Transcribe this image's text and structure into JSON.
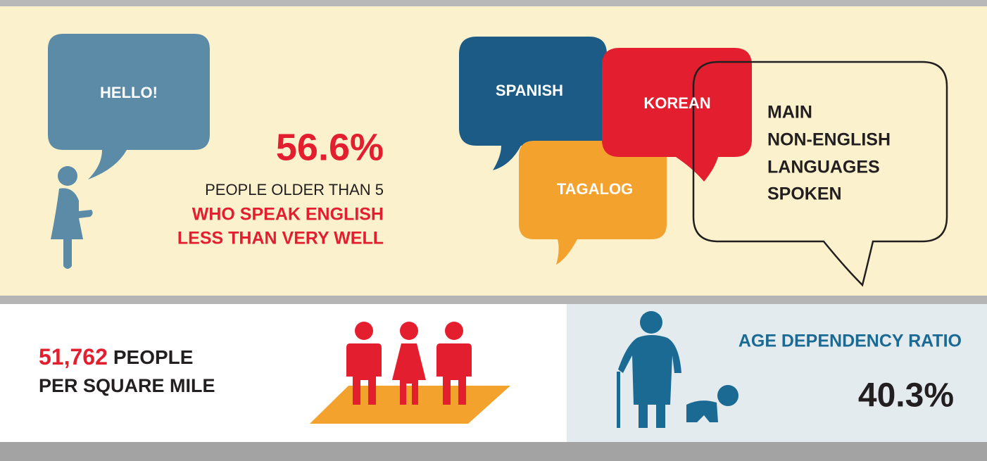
{
  "hello_bubble": "HELLO!",
  "english": {
    "percent": "56.6%",
    "line1": "PEOPLE OLDER THAN 5",
    "line2": "WHO SPEAK ENGLISH",
    "line3": "LESS THAN VERY WELL"
  },
  "languages": {
    "items": [
      "SPANISH",
      "KOREAN",
      "TAGALOG"
    ],
    "caption": [
      "MAIN",
      "NON-ENGLISH",
      "LANGUAGES",
      "SPOKEN"
    ]
  },
  "density": {
    "number": "51,762",
    "unit": "PEOPLE",
    "line2": "PER SQUARE MILE"
  },
  "age_dependency": {
    "label": "AGE DEPENDENCY RATIO",
    "value": "40.3%"
  }
}
